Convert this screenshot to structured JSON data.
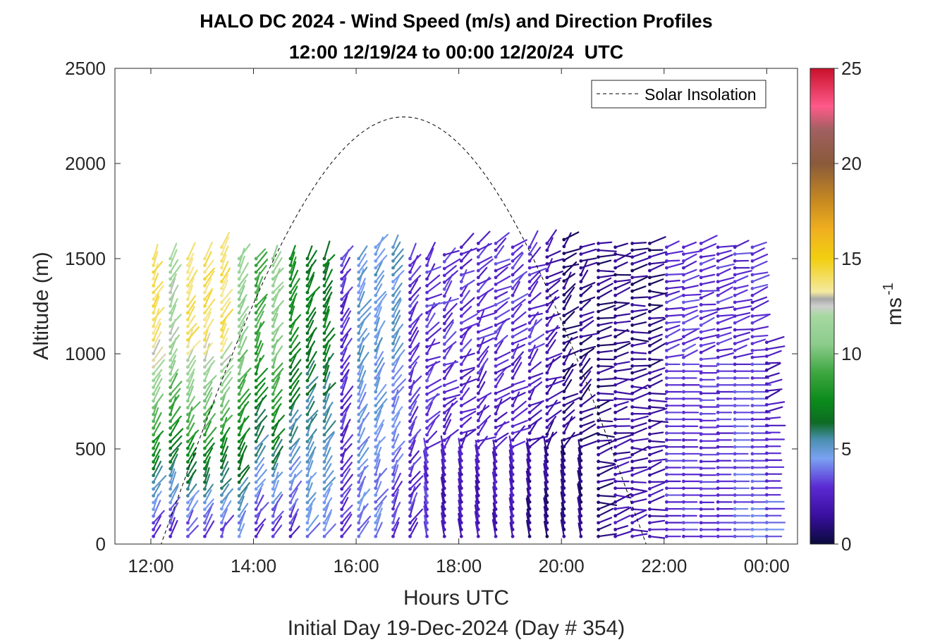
{
  "chart_data": {
    "type": "wind-barb-profile",
    "title": "HALO DC 2024 - Wind Speed (m/s) and Direction Profiles",
    "subtitle": "12:00 12/19/24 to 00:00 12/20/24  UTC",
    "xlabel": "Hours UTC",
    "xlabel2": "Initial Day 19-Dec-2024 (Day # 354)",
    "ylabel": "Altitude (m)",
    "colorbar_label": "ms",
    "colorbar_label_exp": "-1",
    "xlim": [
      11.3,
      24.6
    ],
    "ylim": [
      0,
      2500
    ],
    "x_ticks": [
      "12:00",
      "14:00",
      "16:00",
      "18:00",
      "20:00",
      "22:00",
      "00:00"
    ],
    "x_tick_values": [
      12,
      14,
      16,
      18,
      20,
      22,
      24
    ],
    "y_ticks": [
      0,
      500,
      1000,
      1500,
      2000,
      2500
    ],
    "colorbar_range": [
      0,
      25
    ],
    "colorbar_ticks": [
      0,
      5,
      10,
      15,
      20,
      25
    ],
    "legend": {
      "label": "Solar Insolation",
      "position": "top-right",
      "style": "dashed"
    },
    "solar_insolation": {
      "rise_hour": 12.2,
      "set_hour": 21.65,
      "peak_hour": 16.93,
      "peak_altitude_units": 2245
    },
    "profile_times": [
      12.05,
      12.38,
      12.72,
      13.05,
      13.38,
      13.72,
      14.05,
      14.38,
      14.72,
      15.05,
      15.38,
      15.72,
      16.05,
      16.38,
      16.72,
      17.05,
      17.38,
      17.72,
      18.05,
      18.38,
      18.72,
      19.05,
      19.38,
      19.72,
      20.05,
      20.38,
      20.72,
      21.05,
      21.38,
      21.72,
      22.05,
      22.38,
      22.72,
      23.05,
      23.38,
      23.72,
      24.0
    ],
    "profile_top_m": [
      1500,
      1500,
      1500,
      1500,
      1560,
      1500,
      1500,
      1500,
      1500,
      1500,
      1500,
      1500,
      1500,
      1560,
      1560,
      1500,
      1500,
      1520,
      1560,
      1580,
      1580,
      1560,
      1560,
      1580,
      1600,
      1560,
      1580,
      1560,
      1580,
      1580,
      1560,
      1560,
      1580,
      1560,
      1560,
      1560,
      1060
    ],
    "profile_speed_low_ms": [
      3,
      3,
      3,
      3,
      3,
      4,
      3,
      3,
      3,
      4,
      4,
      3,
      4,
      4,
      3,
      3,
      3,
      2,
      2,
      2,
      2,
      2,
      1,
      1,
      1,
      1,
      1,
      2,
      2,
      2,
      3,
      3,
      3,
      3,
      4,
      4,
      4
    ],
    "profile_speed_high_ms": [
      14,
      12,
      14,
      14,
      14,
      11,
      9,
      11,
      8,
      7,
      7,
      3,
      5,
      5,
      5,
      3,
      3,
      3,
      3,
      3,
      3,
      3,
      3,
      2,
      1,
      1,
      1,
      1,
      1,
      1,
      3,
      3,
      3,
      3,
      3,
      3,
      2
    ]
  }
}
